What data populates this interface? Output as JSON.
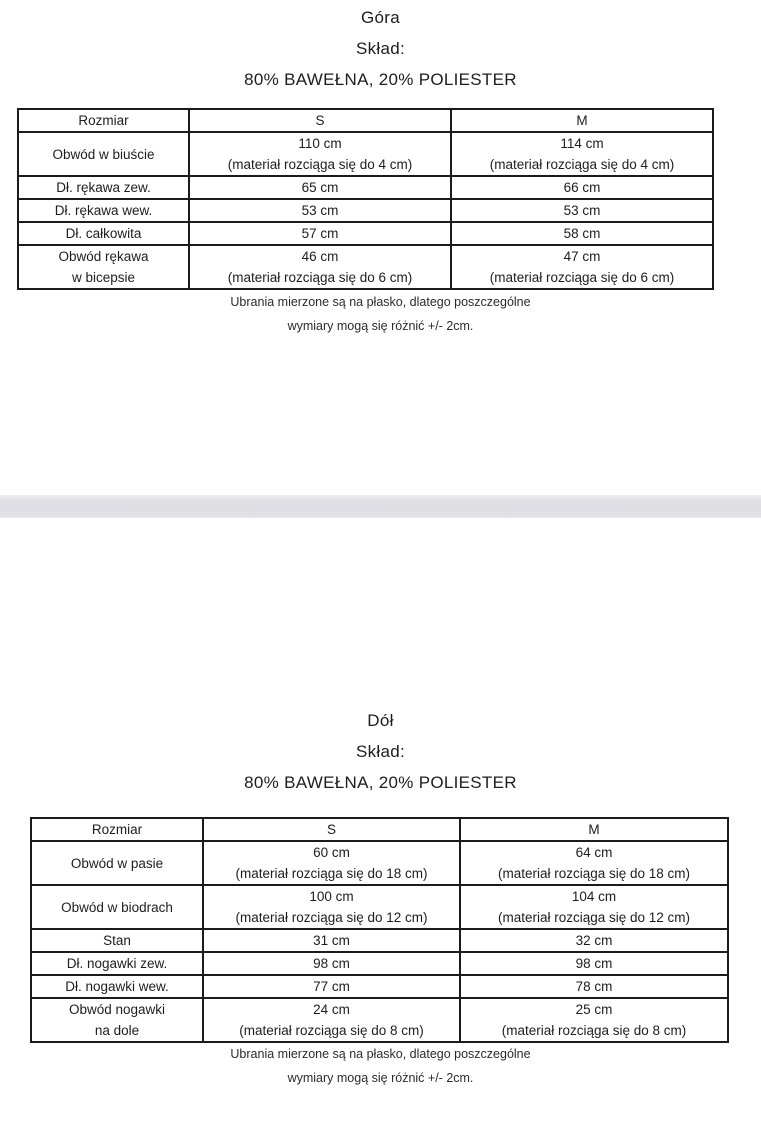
{
  "colors": {
    "text": "#1d1d1f",
    "table_border": "#1b1b1b",
    "divider_light": "#f0f0f3",
    "divider_mid": "#dcdce1",
    "background": "#ffffff"
  },
  "sections": [
    {
      "title": "Góra",
      "subtitle": "Skład:",
      "composition": "80% BAWEŁNA, 20% POLIESTER",
      "table": {
        "headers": [
          "Rozmiar",
          "S",
          "M"
        ],
        "rows": [
          {
            "label1": "Obwód w biuście",
            "label2": "",
            "s1": "110 cm",
            "s2": "(materiał rozciąga się do 4 cm)",
            "m1": "114 cm",
            "m2": "(materiał rozciąga się do 4 cm)"
          },
          {
            "label1": "Dł. rękawa zew.",
            "label2": "",
            "s1": "65 cm",
            "s2": "",
            "m1": "66 cm",
            "m2": ""
          },
          {
            "label1": "Dł. rękawa wew.",
            "label2": "",
            "s1": "53 cm",
            "s2": "",
            "m1": "53 cm",
            "m2": ""
          },
          {
            "label1": "Dł. całkowita",
            "label2": "",
            "s1": "57 cm",
            "s2": "",
            "m1": "58 cm",
            "m2": ""
          },
          {
            "label1": "Obwód rękawa",
            "label2": "w bicepsie",
            "s1": "46 cm",
            "s2": "(materiał rozciąga się do 6 cm)",
            "m1": "47 cm",
            "m2": "(materiał rozciąga się do 6 cm)"
          }
        ]
      },
      "footnote_line1": "Ubrania mierzone są na płasko, dlatego poszczególne",
      "footnote_line2": "wymiary mogą się różnić +/- 2cm."
    },
    {
      "title": "Dół",
      "subtitle": "Skład:",
      "composition": "80% BAWEŁNA, 20% POLIESTER",
      "table": {
        "headers": [
          "Rozmiar",
          "S",
          "M"
        ],
        "rows": [
          {
            "label1": "Obwód w pasie",
            "label2": "",
            "s1": "60 cm",
            "s2": "(materiał rozciąga się do 18 cm)",
            "m1": "64 cm",
            "m2": "(materiał rozciąga się do 18 cm)"
          },
          {
            "label1": "Obwód w biodrach",
            "label2": "",
            "s1": "100 cm",
            "s2": "(materiał rozciąga się do 12 cm)",
            "m1": "104 cm",
            "m2": "(materiał rozciąga się do 12 cm)"
          },
          {
            "label1": "Stan",
            "label2": "",
            "s1": "31 cm",
            "s2": "",
            "m1": "32 cm",
            "m2": ""
          },
          {
            "label1": "Dł. nogawki zew.",
            "label2": "",
            "s1": "98 cm",
            "s2": "",
            "m1": "98 cm",
            "m2": ""
          },
          {
            "label1": "Dł. nogawki wew.",
            "label2": "",
            "s1": "77 cm",
            "s2": "",
            "m1": "78 cm",
            "m2": ""
          },
          {
            "label1": "Obwód nogawki",
            "label2": "na dole",
            "s1": "24 cm",
            "s2": "(materiał rozciąga się do 8 cm)",
            "m1": "25 cm",
            "m2": "(materiał rozciąga się do 8 cm)"
          }
        ]
      },
      "footnote_line1": "Ubrania mierzone są na płasko, dlatego poszczególne",
      "footnote_line2": "wymiary mogą się różnić +/- 2cm."
    }
  ]
}
